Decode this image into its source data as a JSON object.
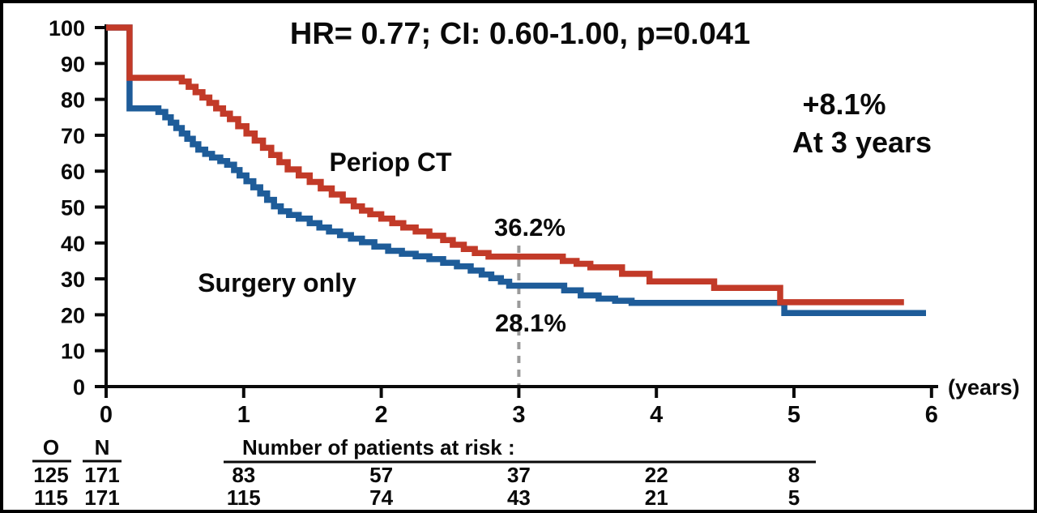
{
  "figure": {
    "title": "HR= 0.77; CI: 0.60-1.00, p=0.041",
    "background_color": "#ffffff",
    "border_color": "#000000"
  },
  "chart_data": {
    "type": "line",
    "subtype": "kaplan-meier-step-curves",
    "title": "HR= 0.77; CI: 0.60-1.00, p=0.041",
    "xlabel": "(years)",
    "ylabel": "",
    "xlim": [
      0,
      6
    ],
    "ylim": [
      0,
      100
    ],
    "x_ticks": [
      0,
      1,
      2,
      3,
      4,
      5,
      6
    ],
    "y_ticks": [
      100,
      90,
      80,
      70,
      60,
      50,
      40,
      30,
      20,
      10,
      0
    ],
    "grid": false,
    "legend_position": "inline-labels",
    "axis_color": "#0a0a0a",
    "series": [
      {
        "name": "Periop CT",
        "color": "#c23a28",
        "end_x": 5.8,
        "points": [
          [
            0,
            100
          ],
          [
            0.17,
            86
          ],
          [
            0.55,
            85
          ],
          [
            0.6,
            83.5
          ],
          [
            0.65,
            82
          ],
          [
            0.7,
            80.5
          ],
          [
            0.75,
            79
          ],
          [
            0.8,
            77.5
          ],
          [
            0.85,
            76
          ],
          [
            0.9,
            74.5
          ],
          [
            0.96,
            72.5
          ],
          [
            1.02,
            70.5
          ],
          [
            1.08,
            68.5
          ],
          [
            1.14,
            66.5
          ],
          [
            1.2,
            64.5
          ],
          [
            1.26,
            62.5
          ],
          [
            1.32,
            60.5
          ],
          [
            1.4,
            58.8
          ],
          [
            1.48,
            57
          ],
          [
            1.56,
            55.2
          ],
          [
            1.64,
            53.5
          ],
          [
            1.72,
            51.8
          ],
          [
            1.8,
            50.2
          ],
          [
            1.86,
            49
          ],
          [
            1.92,
            48
          ],
          [
            2.0,
            46.8
          ],
          [
            2.08,
            45.5
          ],
          [
            2.16,
            44.3
          ],
          [
            2.25,
            43.2
          ],
          [
            2.35,
            42
          ],
          [
            2.45,
            40.8
          ],
          [
            2.52,
            39.5
          ],
          [
            2.6,
            38.3
          ],
          [
            2.68,
            37.2
          ],
          [
            2.78,
            36.2
          ],
          [
            3.32,
            35
          ],
          [
            3.42,
            34.2
          ],
          [
            3.52,
            33.2
          ],
          [
            3.75,
            31.4
          ],
          [
            3.95,
            29.3
          ],
          [
            4.42,
            27.5
          ],
          [
            4.9,
            23.5
          ]
        ]
      },
      {
        "name": "Surgery only",
        "color": "#1e5c99",
        "end_x": 5.96,
        "points": [
          [
            0,
            100
          ],
          [
            0.17,
            77.5
          ],
          [
            0.38,
            76.5
          ],
          [
            0.43,
            75
          ],
          [
            0.47,
            73.5
          ],
          [
            0.51,
            72
          ],
          [
            0.55,
            70.5
          ],
          [
            0.59,
            69
          ],
          [
            0.63,
            67.5
          ],
          [
            0.67,
            66
          ],
          [
            0.72,
            64.8
          ],
          [
            0.77,
            63.8
          ],
          [
            0.83,
            62.8
          ],
          [
            0.88,
            61.8
          ],
          [
            0.93,
            60.3
          ],
          [
            0.97,
            58.8
          ],
          [
            1.02,
            57.2
          ],
          [
            1.07,
            55.5
          ],
          [
            1.12,
            53.8
          ],
          [
            1.17,
            52
          ],
          [
            1.22,
            50.2
          ],
          [
            1.27,
            48.8
          ],
          [
            1.33,
            47.8
          ],
          [
            1.4,
            46.8
          ],
          [
            1.48,
            45.5
          ],
          [
            1.55,
            44.3
          ],
          [
            1.62,
            43.2
          ],
          [
            1.7,
            42.2
          ],
          [
            1.78,
            41.2
          ],
          [
            1.86,
            40.2
          ],
          [
            1.95,
            39
          ],
          [
            2.05,
            37.8
          ],
          [
            2.15,
            37
          ],
          [
            2.25,
            36.3
          ],
          [
            2.35,
            35.5
          ],
          [
            2.45,
            34.5
          ],
          [
            2.55,
            33.5
          ],
          [
            2.65,
            32.3
          ],
          [
            2.73,
            31.2
          ],
          [
            2.8,
            30.2
          ],
          [
            2.87,
            29.2
          ],
          [
            2.93,
            28.1
          ],
          [
            3.33,
            26.8
          ],
          [
            3.45,
            25.4
          ],
          [
            3.58,
            24.5
          ],
          [
            3.7,
            23.9
          ],
          [
            3.82,
            23.3
          ],
          [
            4.93,
            20.5
          ]
        ]
      }
    ],
    "reference_line": {
      "x": 3,
      "style": "dashed",
      "color": "#9a9a9a"
    },
    "annotations": [
      {
        "text": "Periop CT",
        "series": "Periop CT"
      },
      {
        "text": "Surgery only",
        "series": "Surgery only"
      },
      {
        "text": "36.2%",
        "meaning": "Periop CT survival at 3 years"
      },
      {
        "text": "28.1%",
        "meaning": "Surgery only survival at 3 years"
      },
      {
        "text": "+8.1%",
        "meaning": "absolute difference"
      },
      {
        "text": "At 3 years",
        "meaning": "difference timepoint"
      }
    ]
  },
  "labels": {
    "periop_curve": "Periop CT",
    "surgery_curve": "Surgery only",
    "periop_3yr_pct": "36.2%",
    "surgery_3yr_pct": "28.1%",
    "difference_pct": "+8.1%",
    "difference_caption": "At 3 years",
    "x_axis_unit": "(years)"
  },
  "risk_table": {
    "col_o_header": "O",
    "col_n_header": "N",
    "header": "Number of patients at risk :",
    "at_risk_times": [
      1,
      2,
      3,
      4,
      5
    ],
    "rows": [
      {
        "o": "125",
        "n": "171",
        "at_risk": [
          "83",
          "57",
          "37",
          "22",
          "8"
        ]
      },
      {
        "o": "115",
        "n": "171",
        "at_risk": [
          "115",
          "74",
          "43",
          "21",
          "5"
        ]
      }
    ]
  }
}
